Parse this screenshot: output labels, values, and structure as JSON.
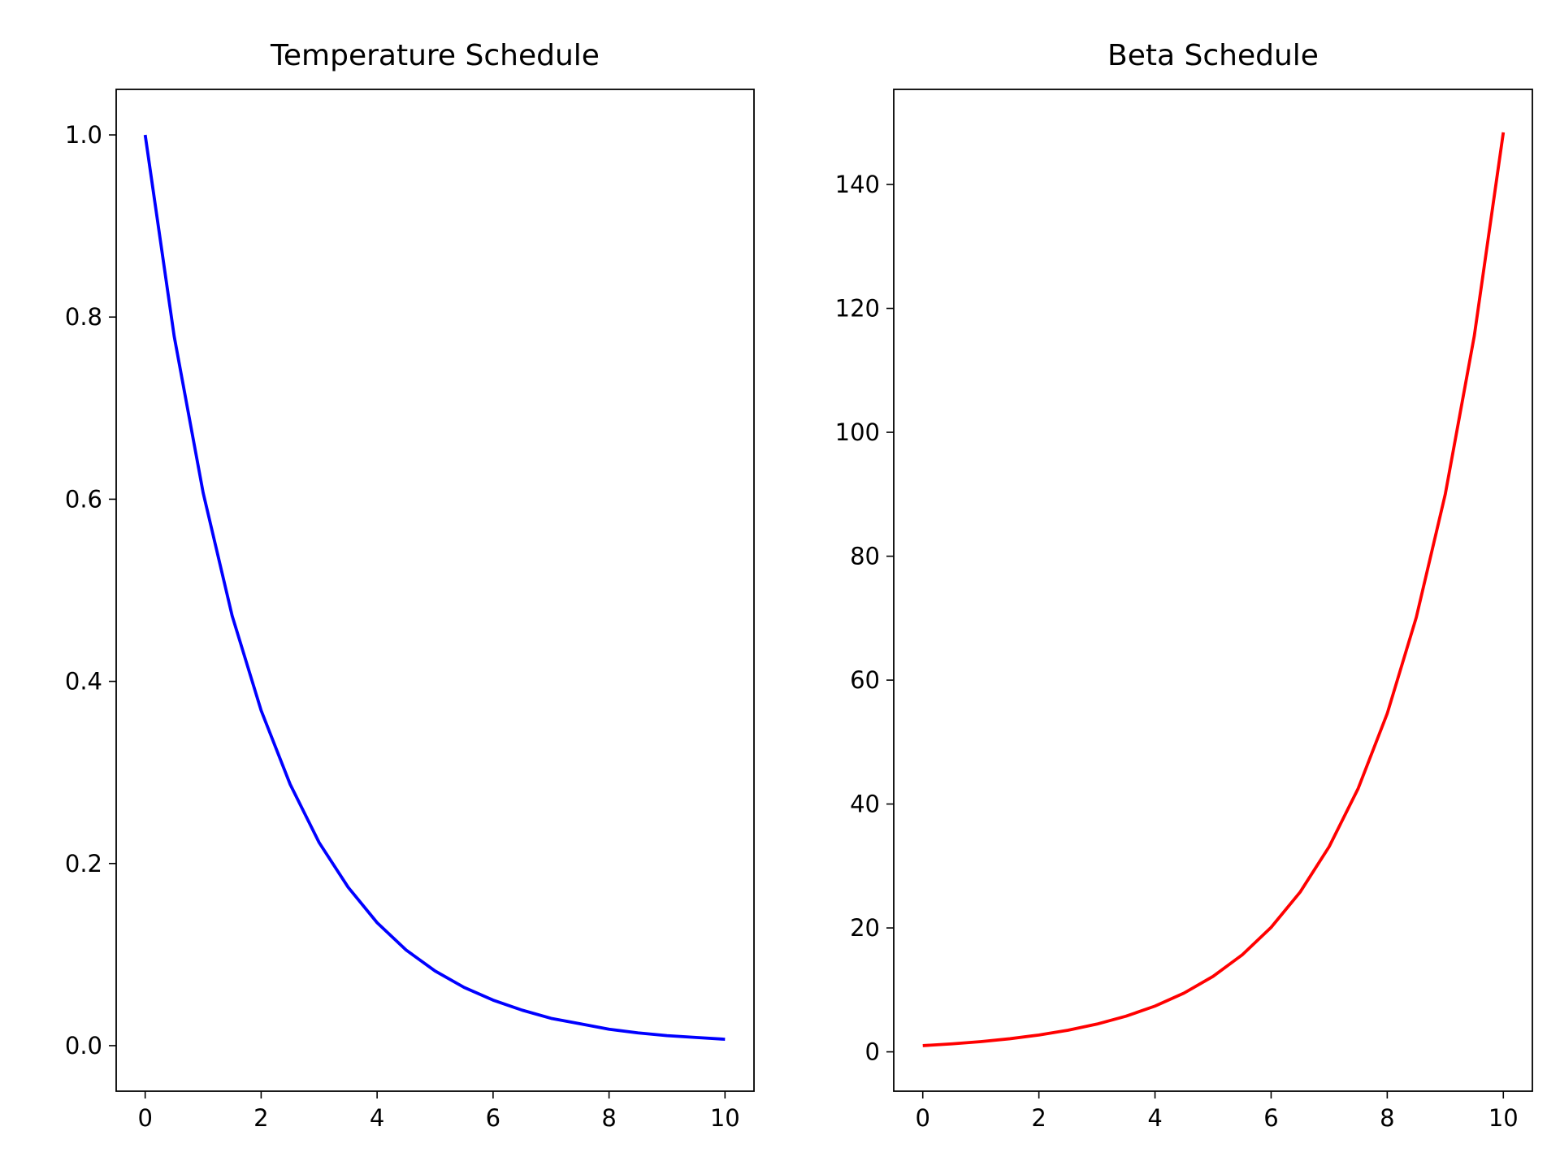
{
  "chart_data": [
    {
      "type": "line",
      "title": "Temperature Schedule",
      "xlabel": "",
      "ylabel": "",
      "xlim": [
        -0.5,
        10.5
      ],
      "ylim": [
        -0.05,
        1.05
      ],
      "xticks": [
        0,
        2,
        4,
        6,
        8,
        10
      ],
      "xtick_labels": [
        "0",
        "2",
        "4",
        "6",
        "8",
        "10"
      ],
      "yticks": [
        0.0,
        0.2,
        0.4,
        0.6,
        0.8,
        1.0
      ],
      "ytick_labels": [
        "0.0",
        "0.2",
        "0.4",
        "0.6",
        "0.8",
        "1.0"
      ],
      "grid": false,
      "series": [
        {
          "name": "temperature",
          "color": "#0000ff",
          "x": [
            0,
            0.5,
            1,
            1.5,
            2,
            2.5,
            3,
            3.5,
            4,
            4.5,
            5,
            5.5,
            6,
            6.5,
            7,
            7.5,
            8,
            8.5,
            9,
            9.5,
            10
          ],
          "y": [
            1.0,
            0.779,
            0.607,
            0.472,
            0.368,
            0.287,
            0.223,
            0.174,
            0.135,
            0.105,
            0.082,
            0.064,
            0.05,
            0.039,
            0.03,
            0.024,
            0.018,
            0.014,
            0.011,
            0.009,
            0.007
          ]
        }
      ]
    },
    {
      "type": "line",
      "title": "Beta Schedule",
      "xlabel": "",
      "ylabel": "",
      "xlim": [
        -0.5,
        10.5
      ],
      "ylim": [
        -6.35,
        155.35
      ],
      "xticks": [
        0,
        2,
        4,
        6,
        8,
        10
      ],
      "xtick_labels": [
        "0",
        "2",
        "4",
        "6",
        "8",
        "10"
      ],
      "yticks": [
        0,
        20,
        40,
        60,
        80,
        100,
        120,
        140
      ],
      "ytick_labels": [
        "0",
        "20",
        "40",
        "60",
        "80",
        "100",
        "120",
        "140"
      ],
      "grid": false,
      "series": [
        {
          "name": "beta",
          "color": "#ff0000",
          "x": [
            0,
            0.5,
            1,
            1.5,
            2,
            2.5,
            3,
            3.5,
            4,
            4.5,
            5,
            5.5,
            6,
            6.5,
            7,
            7.5,
            8,
            8.5,
            9,
            9.5,
            10
          ],
          "y": [
            1.0,
            1.284,
            1.649,
            2.117,
            2.718,
            3.49,
            4.482,
            5.755,
            7.389,
            9.488,
            12.18,
            15.64,
            20.09,
            25.79,
            33.12,
            42.52,
            54.6,
            70.11,
            90.02,
            115.58,
            148.41
          ]
        }
      ]
    }
  ]
}
